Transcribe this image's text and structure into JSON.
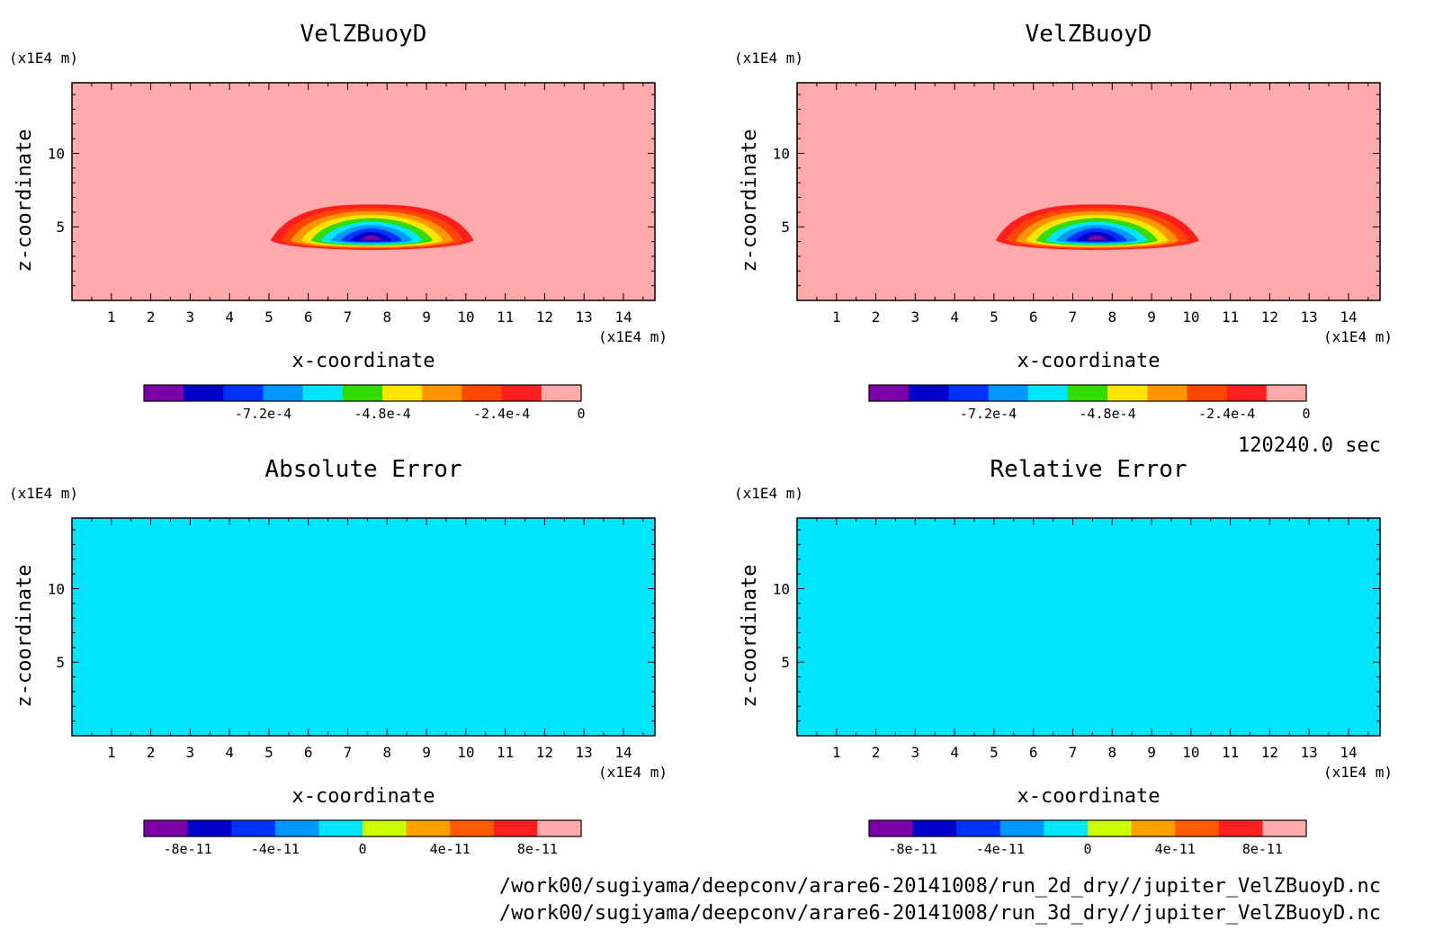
{
  "colors": {
    "frame": "#000000",
    "buoy_levels": [
      "#7b00a8",
      "#0000c8",
      "#0032ff",
      "#0096ff",
      "#00e6ff",
      "#32dc00",
      "#ffe600",
      "#ff9600",
      "#ff4600",
      "#ff1e1e",
      "#ffaaaa"
    ],
    "err_levels": [
      "#7b00a8",
      "#0000c8",
      "#0032ff",
      "#0096ff",
      "#00e6ff",
      "#ccff00",
      "#ffa000",
      "#ff5a00",
      "#ff1e1e",
      "#ffaaaa"
    ]
  },
  "chart_data": [
    {
      "type": "heatmap",
      "title": "VelZBuoyD",
      "xlabel": "x-coordinate",
      "ylabel": "z-coordinate",
      "x_unit": "(x1E4 m)",
      "y_unit": "(x1E4 m)",
      "xlim": [
        0,
        14.8
      ],
      "ylim": [
        0,
        14.8
      ],
      "xticks": [
        "1",
        "2",
        "3",
        "4",
        "5",
        "6",
        "7",
        "8",
        "9",
        "10",
        "11",
        "12",
        "13",
        "14"
      ],
      "yticks": [
        "5",
        "10"
      ],
      "colorbar": {
        "ticks": [
          "-7.2e-4",
          "-4.8e-4",
          "-2.4e-4",
          "0"
        ]
      },
      "feature": {
        "center_x": 7.6,
        "center_z": 4.2,
        "min_value": -0.00084
      }
    },
    {
      "type": "heatmap",
      "title": "VelZBuoyD",
      "xlabel": "x-coordinate",
      "ylabel": "z-coordinate",
      "x_unit": "(x1E4 m)",
      "y_unit": "(x1E4 m)",
      "xlim": [
        0,
        14.8
      ],
      "ylim": [
        0,
        14.8
      ],
      "xticks": [
        "1",
        "2",
        "3",
        "4",
        "5",
        "6",
        "7",
        "8",
        "9",
        "10",
        "11",
        "12",
        "13",
        "14"
      ],
      "yticks": [
        "5",
        "10"
      ],
      "colorbar": {
        "ticks": [
          "-7.2e-4",
          "-4.8e-4",
          "-2.4e-4",
          "0"
        ]
      },
      "feature": {
        "center_x": 7.6,
        "center_z": 4.2,
        "min_value": -0.00084
      }
    },
    {
      "type": "heatmap",
      "title": "Absolute Error",
      "xlabel": "x-coordinate",
      "ylabel": "z-coordinate",
      "x_unit": "(x1E4 m)",
      "y_unit": "(x1E4 m)",
      "xlim": [
        0,
        14.8
      ],
      "ylim": [
        0,
        14.8
      ],
      "xticks": [
        "1",
        "2",
        "3",
        "4",
        "5",
        "6",
        "7",
        "8",
        "9",
        "10",
        "11",
        "12",
        "13",
        "14"
      ],
      "yticks": [
        "5",
        "10"
      ],
      "colorbar": {
        "ticks": [
          "-8e-11",
          "-4e-11",
          "0",
          "4e-11",
          "8e-11"
        ]
      }
    },
    {
      "type": "heatmap",
      "title": "Relative Error",
      "xlabel": "x-coordinate",
      "ylabel": "z-coordinate",
      "x_unit": "(x1E4 m)",
      "y_unit": "(x1E4 m)",
      "xlim": [
        0,
        14.8
      ],
      "ylim": [
        0,
        14.8
      ],
      "xticks": [
        "1",
        "2",
        "3",
        "4",
        "5",
        "6",
        "7",
        "8",
        "9",
        "10",
        "11",
        "12",
        "13",
        "14"
      ],
      "yticks": [
        "5",
        "10"
      ],
      "colorbar": {
        "ticks": [
          "-8e-11",
          "-4e-11",
          "0",
          "4e-11",
          "8e-11"
        ]
      }
    }
  ],
  "time_label": "120240.0 sec",
  "file_paths": [
    "/work00/sugiyama/deepconv/arare6-20141008/run_2d_dry//jupiter_VelZBuoyD.nc",
    "/work00/sugiyama/deepconv/arare6-20141008/run_3d_dry//jupiter_VelZBuoyD.nc"
  ]
}
